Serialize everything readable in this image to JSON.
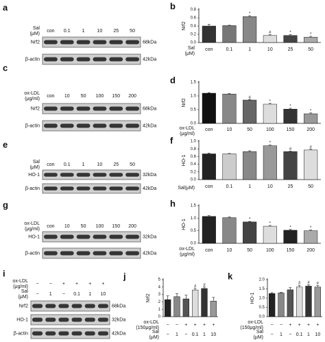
{
  "blots": [
    {
      "panel": "a",
      "header_rows": [
        {
          "label": "Sal (μM)",
          "lanes": [
            "con",
            "0.1",
            "1",
            "10",
            "25",
            "50"
          ]
        }
      ],
      "rows": [
        {
          "name": "Nrf2",
          "size": "68kDa"
        },
        {
          "name": "β-actin",
          "size": "42kDa"
        }
      ]
    },
    {
      "panel": "c",
      "header_rows": [
        {
          "label": "ox-LDL (μg/ml)",
          "lanes": [
            "con",
            "10",
            "50",
            "100",
            "150",
            "200"
          ]
        }
      ],
      "rows": [
        {
          "name": "Nrf2",
          "size": "68kDa"
        },
        {
          "name": "β-actin",
          "size": "42kDa"
        }
      ]
    },
    {
      "panel": "e",
      "header_rows": [
        {
          "label": "Sal (μM)",
          "lanes": [
            "con",
            "0.1",
            "1",
            "10",
            "25",
            "50"
          ]
        }
      ],
      "rows": [
        {
          "name": "HO-1",
          "size": "32kDa"
        },
        {
          "name": "β-actin",
          "size": "42kDa"
        }
      ]
    },
    {
      "panel": "g",
      "header_rows": [
        {
          "label": "ox-LDL (μg/ml)",
          "lanes": [
            "con",
            "10",
            "50",
            "100",
            "150",
            "200"
          ]
        }
      ],
      "rows": [
        {
          "name": "HO-1",
          "size": "32kDa"
        },
        {
          "name": "β-actin",
          "size": "42kDa"
        }
      ]
    },
    {
      "panel": "i",
      "header_rows": [
        {
          "label": "ox-LDL (μg/ml)",
          "lanes": [
            "−",
            "−",
            "+",
            "+",
            "+",
            "+"
          ]
        },
        {
          "label": "Sal (μM)",
          "lanes": [
            "−",
            "1",
            "−",
            "0.1",
            "1",
            "10"
          ]
        }
      ],
      "rows": [
        {
          "name": "Nrf2",
          "size": "68kDa"
        },
        {
          "name": "HO-1",
          "size": "32kDa"
        },
        {
          "name": "β-actin",
          "size": "42kDa"
        }
      ]
    }
  ],
  "chart_data": [
    {
      "type": "bar",
      "panel": "b",
      "ylabel": "Nrf2",
      "xlabel": "Sal (μM)",
      "categories": [
        "con",
        "0.1",
        "1",
        "10",
        "25",
        "50"
      ],
      "values": [
        0.4,
        0.41,
        0.63,
        0.17,
        0.17,
        0.13
      ],
      "errors": [
        0.04,
        0.01,
        0.02,
        0.02,
        0.02,
        0.02
      ],
      "marks": [
        null,
        null,
        "*",
        "#",
        "*",
        "*"
      ],
      "colors": [
        "#333333",
        "#777777",
        "#888888",
        "#dddddd",
        "#444444",
        "#aaaaaa"
      ],
      "ylim": [
        0,
        0.8
      ],
      "yticks": [
        {
          "value": 0,
          "label": "0.0"
        },
        {
          "value": 0.2,
          "label": "0.2"
        },
        {
          "value": 0.4,
          "label": "0.4"
        },
        {
          "value": 0.6,
          "label": "0.6"
        },
        {
          "value": 0.8,
          "label": "0.8"
        }
      ]
    },
    {
      "type": "bar",
      "panel": "d",
      "ylabel": "Nrf2",
      "xlabel": "ox-LDL (μg/ml)",
      "categories": [
        "con",
        "10",
        "50",
        "100",
        "150",
        "200"
      ],
      "values": [
        1.1,
        1.07,
        0.85,
        0.7,
        0.52,
        0.35
      ],
      "errors": [
        0.02,
        0.02,
        0.02,
        0.03,
        0.03,
        0.03
      ],
      "marks": [
        null,
        null,
        "#",
        "*",
        "*",
        "*"
      ],
      "colors": [
        "#111111",
        "#888888",
        "#666666",
        "#dddddd",
        "#333333",
        "#999999"
      ],
      "ylim": [
        0,
        1.5
      ],
      "yticks": [
        {
          "value": 0,
          "label": "0.0"
        },
        {
          "value": 0.5,
          "label": "0.5"
        },
        {
          "value": 1,
          "label": "1.0"
        },
        {
          "value": 1.5,
          "label": "1.5"
        }
      ]
    },
    {
      "type": "bar",
      "panel": "f",
      "ylabel": "HO-1",
      "xlabel": "Sal(μM)",
      "categories": [
        "con",
        "0.1",
        "1",
        "10",
        "25",
        "50"
      ],
      "values": [
        0.67,
        0.67,
        0.73,
        0.88,
        0.73,
        0.77
      ],
      "errors": [
        0.02,
        0.01,
        0.02,
        0.02,
        0.01,
        0.02
      ],
      "marks": [
        null,
        null,
        null,
        "*",
        "#",
        "#"
      ],
      "colors": [
        "#222222",
        "#cccccc",
        "#888888",
        "#999999",
        "#444444",
        "#dddddd"
      ],
      "ylim": [
        0,
        1
      ],
      "yticks": [
        {
          "value": 0,
          "label": "0.0"
        },
        {
          "value": 0.2,
          "label": "0.2"
        },
        {
          "value": 0.4,
          "label": "0.4"
        },
        {
          "value": 0.6,
          "label": "0.6"
        },
        {
          "value": 0.8,
          "label": "0.8"
        },
        {
          "value": 1,
          "label": "1.0"
        }
      ]
    },
    {
      "type": "bar",
      "panel": "h",
      "ylabel": "HO-1",
      "xlabel": "ox-LDL (μg/ml)",
      "categories": [
        "con",
        "10",
        "50",
        "100",
        "150",
        "200"
      ],
      "values": [
        1.07,
        1.02,
        0.85,
        0.68,
        0.52,
        0.5
      ],
      "errors": [
        0.03,
        0.03,
        0.02,
        0.03,
        0.03,
        0.03
      ],
      "marks": [
        null,
        null,
        "*",
        "*",
        "*",
        "*"
      ],
      "colors": [
        "#222222",
        "#888888",
        "#444444",
        "#dddddd",
        "#222222",
        "#aaaaaa"
      ],
      "ylim": [
        0,
        1.5
      ],
      "yticks": [
        {
          "value": 0,
          "label": "0.0"
        },
        {
          "value": 0.5,
          "label": "0.5"
        },
        {
          "value": 1,
          "label": "1.0"
        },
        {
          "value": 1.5,
          "label": "1.5"
        }
      ]
    },
    {
      "type": "bar",
      "panel": "j",
      "ylabel": "Nrf2",
      "category_rows": [
        {
          "label": "ox-LDL (150μg/ml)",
          "values": [
            "−",
            "−",
            "+",
            "+",
            "+",
            "+"
          ]
        },
        {
          "label": "Sal (μM)",
          "values": [
            "−",
            "1",
            "−",
            "0.1",
            "1",
            "10"
          ]
        }
      ],
      "values": [
        2.3,
        2.7,
        2.4,
        3.6,
        3.8,
        2.1
      ],
      "errors": [
        0.5,
        0.4,
        0.5,
        0.2,
        0.2,
        0.5
      ],
      "marks": [
        null,
        null,
        null,
        "#",
        "#",
        null
      ],
      "colors": [
        "#222222",
        "#888888",
        "#555555",
        "#dddddd",
        "#333333",
        "#999999"
      ],
      "ylim": [
        0,
        5
      ],
      "yticks": [
        0,
        1,
        2,
        3,
        4,
        5
      ]
    },
    {
      "type": "bar",
      "panel": "k",
      "ylabel": "HO-1",
      "category_rows": [
        {
          "label": "ox-LDL (150μg/ml)",
          "values": [
            "−",
            "−",
            "+",
            "+",
            "+",
            "+"
          ]
        },
        {
          "label": "Sal (μM)",
          "values": [
            "−",
            "1",
            "−",
            "0.1",
            "1",
            "10"
          ]
        }
      ],
      "values": [
        1.25,
        1.28,
        1.45,
        1.6,
        1.65,
        1.6
      ],
      "errors": [
        0.05,
        0.03,
        0.12,
        0.1,
        0.08,
        0.08
      ],
      "marks": [
        null,
        null,
        null,
        "#",
        "#",
        "#"
      ],
      "colors": [
        "#222222",
        "#888888",
        "#555555",
        "#dddddd",
        "#333333",
        "#999999"
      ],
      "ylim": [
        0,
        2
      ],
      "yticks": [
        {
          "value": 0,
          "label": "0.0"
        },
        {
          "value": 0.5,
          "label": "0.5"
        },
        {
          "value": 1,
          "label": "1.0"
        },
        {
          "value": 1.5,
          "label": "1.5"
        },
        {
          "value": 2,
          "label": "2.0"
        }
      ]
    }
  ]
}
